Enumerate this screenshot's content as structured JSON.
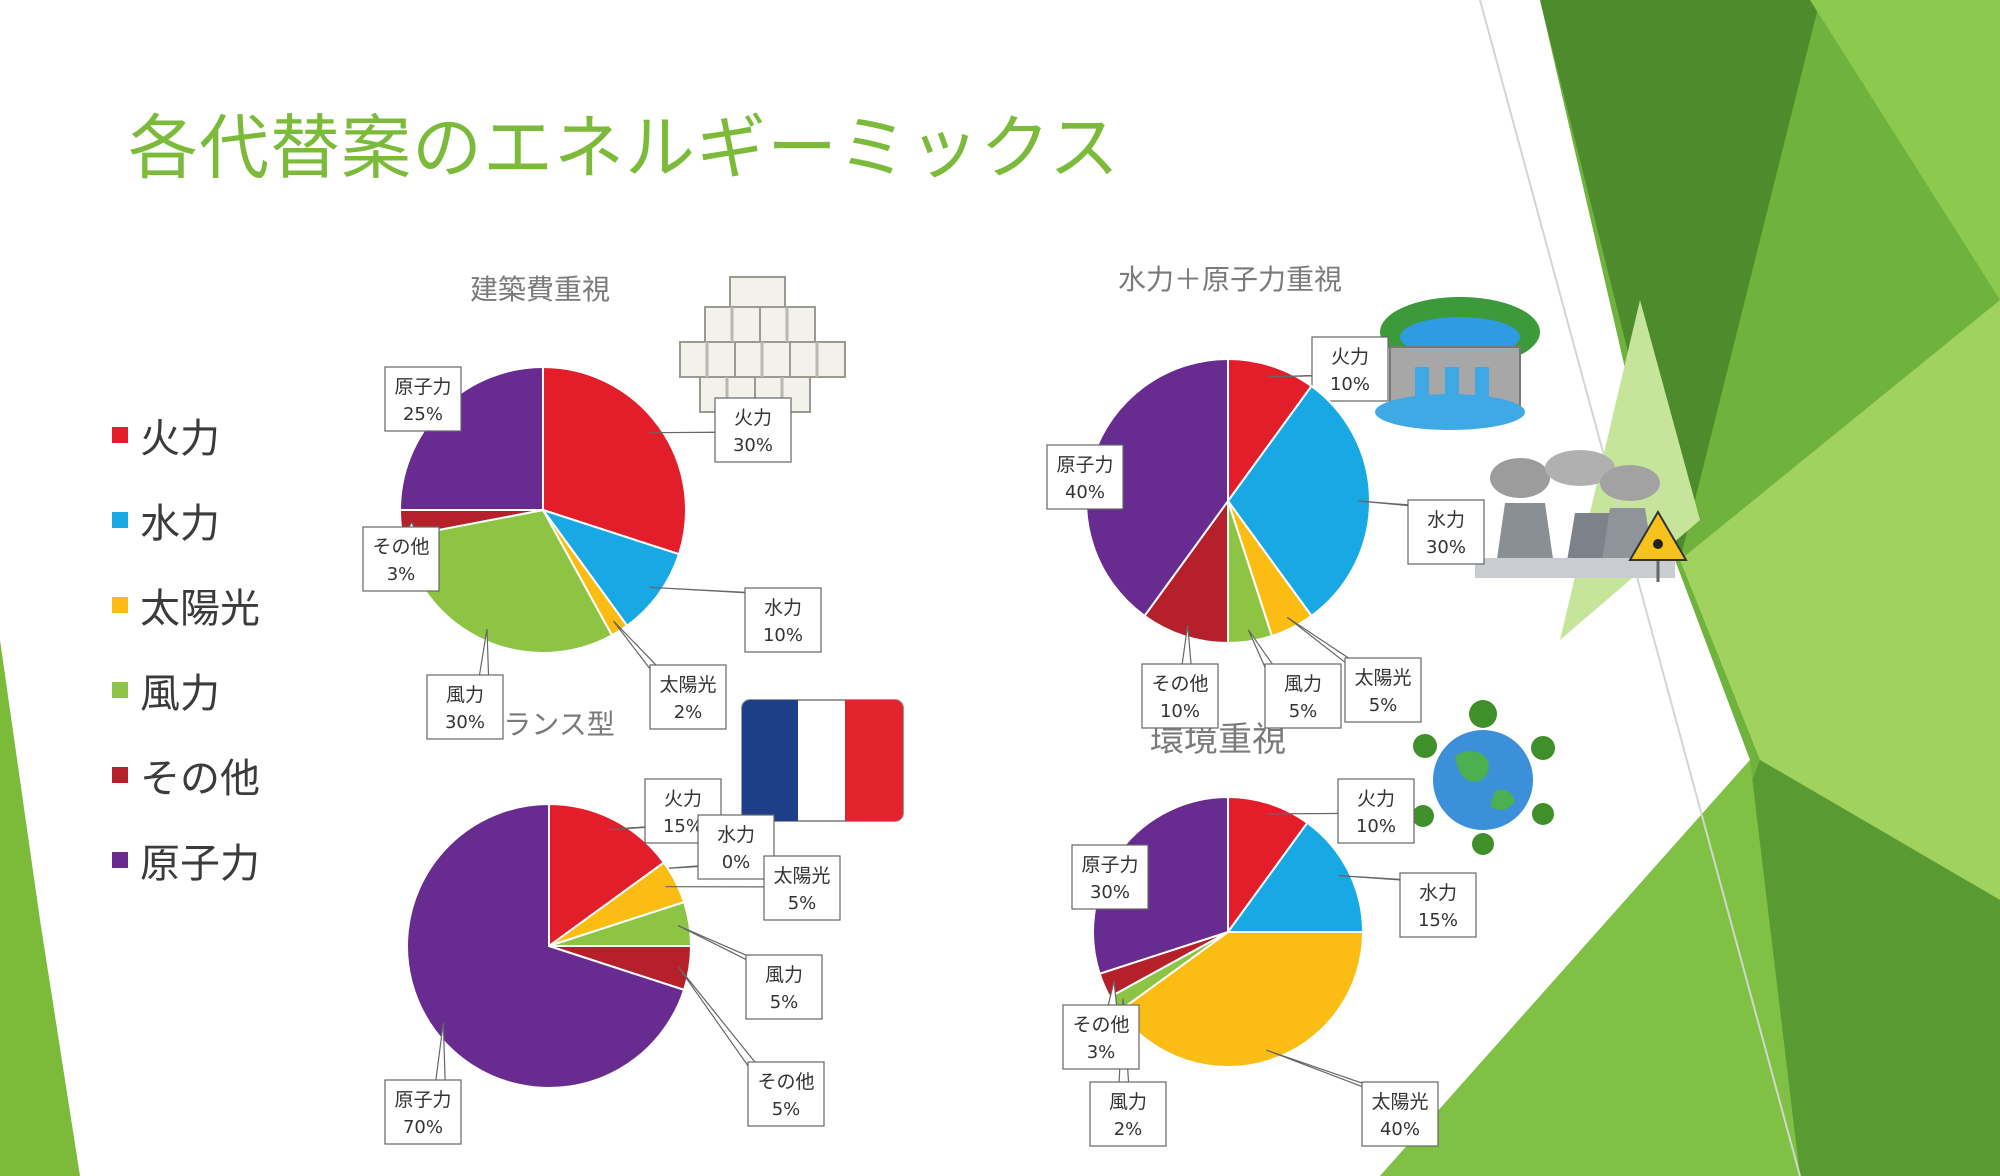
{
  "slide_title": "各代替案のエネルギーミックス",
  "legend": [
    {
      "label": "火力",
      "color": "#e31e2b"
    },
    {
      "label": "水力",
      "color": "#18a9e4"
    },
    {
      "label": "太陽光",
      "color": "#fbbd14"
    },
    {
      "label": "風力",
      "color": "#8dc443"
    },
    {
      "label": "その他",
      "color": "#b5202a"
    },
    {
      "label": "原子力",
      "color": "#682b8f"
    }
  ],
  "illustrations": [
    {
      "name": "money-bundles-icon"
    },
    {
      "name": "dam-icon"
    },
    {
      "name": "nuclear-plant-icon"
    },
    {
      "name": "radiation-warning-icon"
    },
    {
      "name": "france-flag-icon",
      "colors": [
        "#1d3f8a",
        "#ffffff",
        "#e3232e"
      ]
    },
    {
      "name": "earth-trees-icon"
    }
  ],
  "chart_data": [
    {
      "type": "pie",
      "title": "建築費重視",
      "categories": [
        "火力",
        "水力",
        "太陽光",
        "風力",
        "その他",
        "原子力"
      ],
      "values": [
        30,
        10,
        2,
        30,
        3,
        25
      ],
      "data_labels": [
        "30%",
        "10%",
        "2%",
        "30%",
        "3%",
        "25%"
      ]
    },
    {
      "type": "pie",
      "title": "水力＋原子力重視",
      "categories": [
        "火力",
        "水力",
        "太陽光",
        "風力",
        "その他",
        "原子力"
      ],
      "values": [
        10,
        30,
        5,
        5,
        10,
        40
      ],
      "data_labels": [
        "10%",
        "30%",
        "5%",
        "5%",
        "10%",
        "40%"
      ]
    },
    {
      "type": "pie",
      "title": "フランス型",
      "categories": [
        "火力",
        "水力",
        "太陽光",
        "風力",
        "その他",
        "原子力"
      ],
      "values": [
        15,
        0,
        5,
        5,
        5,
        70
      ],
      "data_labels": [
        "15%",
        "0%",
        "5%",
        "5%",
        "5%",
        "70%"
      ]
    },
    {
      "type": "pie",
      "title": "環境重視",
      "categories": [
        "火力",
        "水力",
        "太陽光",
        "風力",
        "その他",
        "原子力"
      ],
      "values": [
        10,
        15,
        40,
        2,
        3,
        30
      ],
      "data_labels": [
        "10%",
        "15%",
        "40%",
        "2%",
        "3%",
        "30%"
      ]
    }
  ]
}
